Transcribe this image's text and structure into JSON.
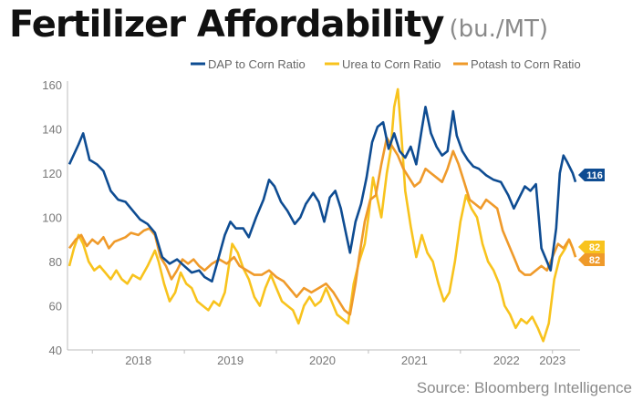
{
  "title": "Fertilizer Affordability",
  "subtitle": "(bu./MT)",
  "source": "Source: Bloomberg Intelligence",
  "chart_data": {
    "type": "line",
    "ylim": [
      40,
      160
    ],
    "yticks": [
      40,
      60,
      80,
      100,
      120,
      140,
      160
    ],
    "xticks": [
      "2018",
      "2019",
      "2020",
      "2021",
      "2022",
      "2023"
    ],
    "legend_position": "top-right",
    "grid": false,
    "series": [
      {
        "name": "DAP to Corn Ratio",
        "color": "#0e4c92",
        "end_label": "116",
        "points": [
          [
            2017.75,
            124
          ],
          [
            2017.85,
            133
          ],
          [
            2017.9,
            138
          ],
          [
            2017.97,
            126
          ],
          [
            2018.05,
            124
          ],
          [
            2018.12,
            121
          ],
          [
            2018.2,
            112
          ],
          [
            2018.28,
            108
          ],
          [
            2018.36,
            107
          ],
          [
            2018.44,
            103
          ],
          [
            2018.52,
            99
          ],
          [
            2018.6,
            97
          ],
          [
            2018.68,
            93
          ],
          [
            2018.76,
            82
          ],
          [
            2018.84,
            79
          ],
          [
            2018.92,
            81
          ],
          [
            2019.0,
            78
          ],
          [
            2019.08,
            75
          ],
          [
            2019.16,
            76
          ],
          [
            2019.22,
            73
          ],
          [
            2019.3,
            71
          ],
          [
            2019.36,
            80
          ],
          [
            2019.44,
            92
          ],
          [
            2019.5,
            98
          ],
          [
            2019.56,
            95
          ],
          [
            2019.64,
            95
          ],
          [
            2019.7,
            91
          ],
          [
            2019.78,
            100
          ],
          [
            2019.86,
            108
          ],
          [
            2019.92,
            117
          ],
          [
            2019.98,
            114
          ],
          [
            2020.05,
            107
          ],
          [
            2020.12,
            103
          ],
          [
            2020.2,
            97
          ],
          [
            2020.26,
            100
          ],
          [
            2020.32,
            106
          ],
          [
            2020.4,
            111
          ],
          [
            2020.46,
            107
          ],
          [
            2020.52,
            98
          ],
          [
            2020.58,
            109
          ],
          [
            2020.64,
            112
          ],
          [
            2020.7,
            104
          ],
          [
            2020.76,
            92
          ],
          [
            2020.8,
            84
          ],
          [
            2020.86,
            98
          ],
          [
            2020.92,
            106
          ],
          [
            2020.98,
            118
          ],
          [
            2021.04,
            134
          ],
          [
            2021.1,
            141
          ],
          [
            2021.16,
            143
          ],
          [
            2021.22,
            131
          ],
          [
            2021.28,
            138
          ],
          [
            2021.34,
            130
          ],
          [
            2021.4,
            127
          ],
          [
            2021.46,
            132
          ],
          [
            2021.52,
            124
          ],
          [
            2021.58,
            140
          ],
          [
            2021.62,
            150
          ],
          [
            2021.68,
            138
          ],
          [
            2021.74,
            132
          ],
          [
            2021.8,
            128
          ],
          [
            2021.86,
            130
          ],
          [
            2021.92,
            148
          ],
          [
            2021.96,
            137
          ],
          [
            2022.02,
            130
          ],
          [
            2022.08,
            126
          ],
          [
            2022.14,
            123
          ],
          [
            2022.2,
            122
          ],
          [
            2022.28,
            119
          ],
          [
            2022.36,
            117
          ],
          [
            2022.44,
            116
          ],
          [
            2022.52,
            110
          ],
          [
            2022.58,
            104
          ],
          [
            2022.64,
            109
          ],
          [
            2022.7,
            114
          ],
          [
            2022.76,
            112
          ],
          [
            2022.82,
            115
          ],
          [
            2022.88,
            86
          ],
          [
            2022.94,
            80
          ],
          [
            2022.98,
            76
          ],
          [
            2023.04,
            95
          ],
          [
            2023.08,
            120
          ],
          [
            2023.12,
            128
          ],
          [
            2023.16,
            125
          ],
          [
            2023.22,
            120
          ],
          [
            2023.25,
            116
          ]
        ]
      },
      {
        "name": "Urea to Corn Ratio",
        "color": "#f8c31d",
        "end_label": "82",
        "points": [
          [
            2017.75,
            78
          ],
          [
            2017.8,
            86
          ],
          [
            2017.85,
            92
          ],
          [
            2017.9,
            88
          ],
          [
            2017.96,
            80
          ],
          [
            2018.02,
            76
          ],
          [
            2018.08,
            78
          ],
          [
            2018.14,
            75
          ],
          [
            2018.2,
            72
          ],
          [
            2018.26,
            76
          ],
          [
            2018.32,
            72
          ],
          [
            2018.38,
            70
          ],
          [
            2018.44,
            74
          ],
          [
            2018.52,
            72
          ],
          [
            2018.6,
            78
          ],
          [
            2018.68,
            85
          ],
          [
            2018.72,
            80
          ],
          [
            2018.78,
            70
          ],
          [
            2018.84,
            62
          ],
          [
            2018.9,
            66
          ],
          [
            2018.96,
            75
          ],
          [
            2019.02,
            70
          ],
          [
            2019.08,
            68
          ],
          [
            2019.14,
            62
          ],
          [
            2019.2,
            60
          ],
          [
            2019.26,
            58
          ],
          [
            2019.32,
            62
          ],
          [
            2019.38,
            60
          ],
          [
            2019.44,
            66
          ],
          [
            2019.52,
            88
          ],
          [
            2019.58,
            84
          ],
          [
            2019.64,
            77
          ],
          [
            2019.7,
            72
          ],
          [
            2019.76,
            64
          ],
          [
            2019.82,
            60
          ],
          [
            2019.88,
            68
          ],
          [
            2019.94,
            74
          ],
          [
            2020.0,
            68
          ],
          [
            2020.06,
            62
          ],
          [
            2020.12,
            60
          ],
          [
            2020.18,
            58
          ],
          [
            2020.24,
            52
          ],
          [
            2020.3,
            60
          ],
          [
            2020.36,
            64
          ],
          [
            2020.42,
            60
          ],
          [
            2020.48,
            62
          ],
          [
            2020.54,
            68
          ],
          [
            2020.6,
            62
          ],
          [
            2020.66,
            56
          ],
          [
            2020.72,
            54
          ],
          [
            2020.78,
            52
          ],
          [
            2020.84,
            70
          ],
          [
            2020.9,
            80
          ],
          [
            2020.96,
            88
          ],
          [
            2021.0,
            100
          ],
          [
            2021.05,
            118
          ],
          [
            2021.1,
            108
          ],
          [
            2021.14,
            100
          ],
          [
            2021.2,
            120
          ],
          [
            2021.24,
            130
          ],
          [
            2021.28,
            150
          ],
          [
            2021.32,
            158
          ],
          [
            2021.36,
            136
          ],
          [
            2021.4,
            112
          ],
          [
            2021.46,
            96
          ],
          [
            2021.52,
            82
          ],
          [
            2021.58,
            92
          ],
          [
            2021.64,
            84
          ],
          [
            2021.7,
            80
          ],
          [
            2021.76,
            70
          ],
          [
            2021.82,
            62
          ],
          [
            2021.88,
            66
          ],
          [
            2021.94,
            80
          ],
          [
            2022.0,
            98
          ],
          [
            2022.06,
            110
          ],
          [
            2022.12,
            104
          ],
          [
            2022.18,
            100
          ],
          [
            2022.24,
            88
          ],
          [
            2022.3,
            80
          ],
          [
            2022.36,
            76
          ],
          [
            2022.42,
            70
          ],
          [
            2022.48,
            60
          ],
          [
            2022.54,
            56
          ],
          [
            2022.6,
            50
          ],
          [
            2022.66,
            54
          ],
          [
            2022.72,
            52
          ],
          [
            2022.78,
            55
          ],
          [
            2022.84,
            50
          ],
          [
            2022.9,
            44
          ],
          [
            2022.96,
            52
          ],
          [
            2023.02,
            72
          ],
          [
            2023.08,
            82
          ],
          [
            2023.14,
            86
          ],
          [
            2023.18,
            90
          ],
          [
            2023.22,
            86
          ],
          [
            2023.25,
            82
          ]
        ]
      },
      {
        "name": "Potash to Corn Ratio",
        "color": "#ef9a2a",
        "end_label": "82",
        "points": [
          [
            2017.75,
            86
          ],
          [
            2017.82,
            90
          ],
          [
            2017.88,
            92
          ],
          [
            2017.94,
            87
          ],
          [
            2018.0,
            90
          ],
          [
            2018.06,
            88
          ],
          [
            2018.12,
            91
          ],
          [
            2018.18,
            86
          ],
          [
            2018.24,
            89
          ],
          [
            2018.3,
            90
          ],
          [
            2018.36,
            91
          ],
          [
            2018.42,
            93
          ],
          [
            2018.5,
            92
          ],
          [
            2018.56,
            94
          ],
          [
            2018.62,
            95
          ],
          [
            2018.68,
            92
          ],
          [
            2018.74,
            82
          ],
          [
            2018.8,
            78
          ],
          [
            2018.86,
            72
          ],
          [
            2018.92,
            76
          ],
          [
            2018.98,
            81
          ],
          [
            2019.04,
            79
          ],
          [
            2019.1,
            81
          ],
          [
            2019.16,
            78
          ],
          [
            2019.22,
            76
          ],
          [
            2019.3,
            79
          ],
          [
            2019.38,
            81
          ],
          [
            2019.46,
            79
          ],
          [
            2019.54,
            82
          ],
          [
            2019.6,
            78
          ],
          [
            2019.68,
            76
          ],
          [
            2019.76,
            74
          ],
          [
            2019.84,
            74
          ],
          [
            2019.92,
            76
          ],
          [
            2020.0,
            73
          ],
          [
            2020.08,
            71
          ],
          [
            2020.16,
            67
          ],
          [
            2020.22,
            64
          ],
          [
            2020.3,
            68
          ],
          [
            2020.38,
            66
          ],
          [
            2020.46,
            68
          ],
          [
            2020.54,
            70
          ],
          [
            2020.62,
            66
          ],
          [
            2020.68,
            62
          ],
          [
            2020.74,
            58
          ],
          [
            2020.8,
            56
          ],
          [
            2020.86,
            70
          ],
          [
            2020.9,
            82
          ],
          [
            2020.96,
            98
          ],
          [
            2021.02,
            108
          ],
          [
            2021.08,
            110
          ],
          [
            2021.14,
            124
          ],
          [
            2021.2,
            136
          ],
          [
            2021.26,
            132
          ],
          [
            2021.32,
            128
          ],
          [
            2021.38,
            122
          ],
          [
            2021.44,
            118
          ],
          [
            2021.5,
            114
          ],
          [
            2021.56,
            116
          ],
          [
            2021.62,
            122
          ],
          [
            2021.68,
            120
          ],
          [
            2021.74,
            118
          ],
          [
            2021.8,
            116
          ],
          [
            2021.86,
            122
          ],
          [
            2021.92,
            130
          ],
          [
            2021.98,
            124
          ],
          [
            2022.04,
            116
          ],
          [
            2022.1,
            108
          ],
          [
            2022.16,
            106
          ],
          [
            2022.22,
            104
          ],
          [
            2022.28,
            108
          ],
          [
            2022.34,
            106
          ],
          [
            2022.4,
            104
          ],
          [
            2022.46,
            94
          ],
          [
            2022.52,
            88
          ],
          [
            2022.58,
            82
          ],
          [
            2022.64,
            76
          ],
          [
            2022.7,
            74
          ],
          [
            2022.76,
            74
          ],
          [
            2022.82,
            76
          ],
          [
            2022.88,
            78
          ],
          [
            2022.94,
            76
          ],
          [
            2023.0,
            82
          ],
          [
            2023.06,
            88
          ],
          [
            2023.12,
            86
          ],
          [
            2023.18,
            90
          ],
          [
            2023.22,
            86
          ],
          [
            2023.25,
            82
          ]
        ]
      }
    ]
  }
}
